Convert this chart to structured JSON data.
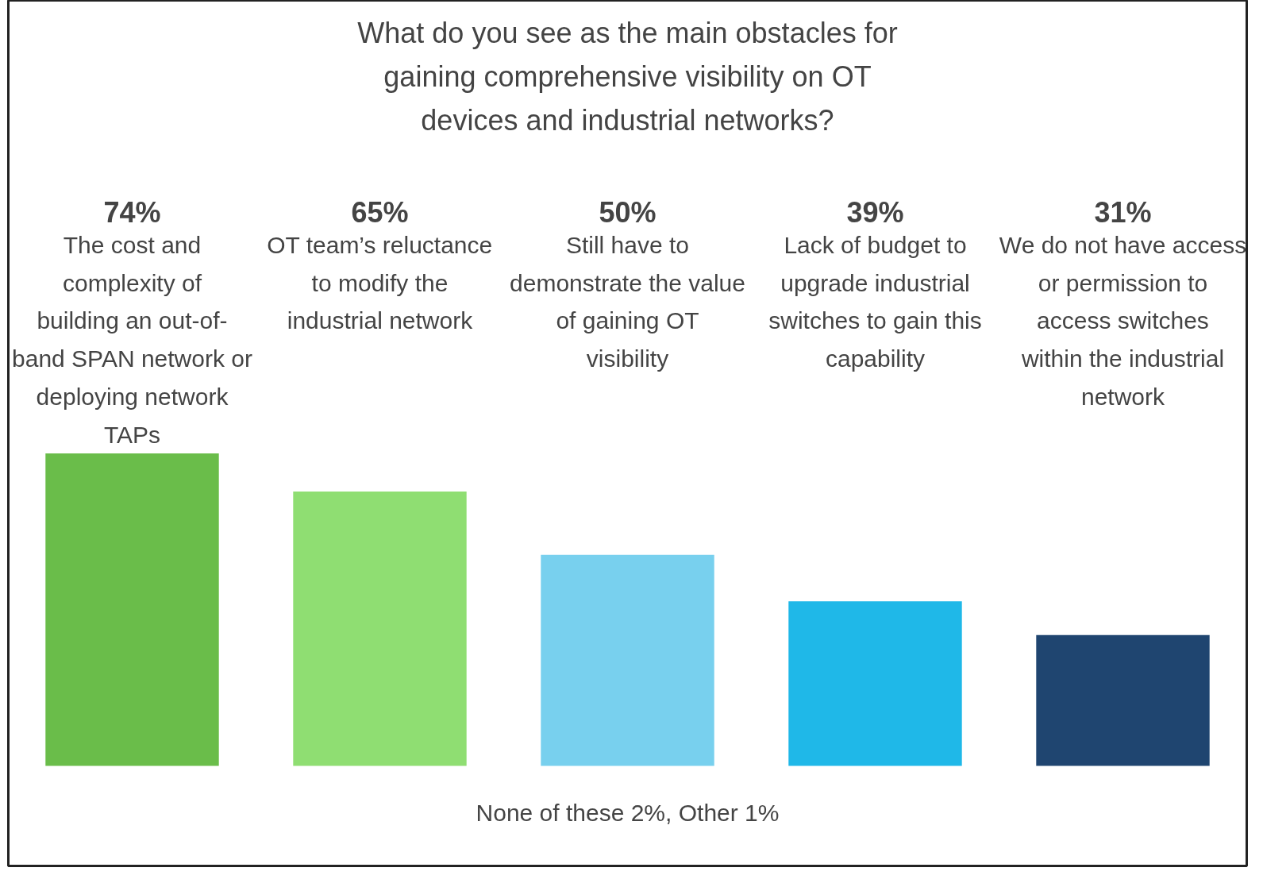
{
  "chart_data": {
    "type": "bar",
    "title": "What do you see as the main obstacles for gaining comprehensive visibility on OT devices and industrial networks?",
    "categories": [
      "The cost and complexity of building an out-of-band SPAN network or deploying network TAPs",
      "OT team’s reluctance to modify the industrial network",
      "Still have to demonstrate the value of gaining OT visibility",
      "Lack of budget to upgrade industrial switches to gain this capability",
      "We do not have access or permission to access switches within the industrial network"
    ],
    "values": [
      74,
      65,
      50,
      39,
      31
    ],
    "colors": [
      "#6abd4a",
      "#8fde72",
      "#78d0ee",
      "#1fb8e8",
      "#1f4570"
    ],
    "value_labels": [
      "74%",
      "65%",
      "50%",
      "39%",
      "31%"
    ],
    "annotations": [
      "None of these 2%, Other 1%"
    ]
  }
}
